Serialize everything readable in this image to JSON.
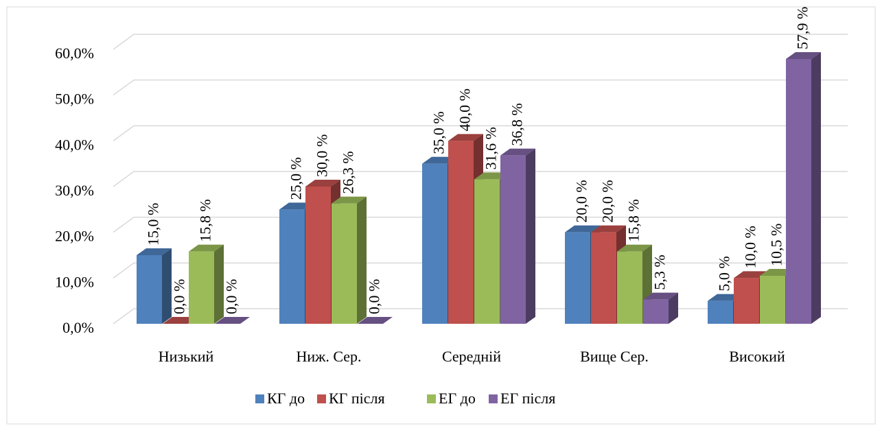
{
  "chart_data": {
    "type": "bar3d",
    "categories": [
      "Низький",
      "Ниж. Сер.",
      "Середній",
      "Вище Сер.",
      "Високий"
    ],
    "series": [
      {
        "name": "КГ до",
        "color": "#4f81bd",
        "values": [
          15.0,
          25.0,
          35.0,
          20.0,
          5.0
        ],
        "value_labels": [
          "15,0 %",
          "25,0 %",
          "35,0 %",
          "20,0 %",
          "5,0 %"
        ]
      },
      {
        "name": "КГ після",
        "color": "#c0504d",
        "values": [
          0.0,
          30.0,
          40.0,
          20.0,
          10.0
        ],
        "value_labels": [
          "0,0 %",
          "30,0 %",
          "40,0 %",
          "20,0 %",
          "10,0 %"
        ]
      },
      {
        "name": "ЕГ до",
        "color": "#9bbb59",
        "values": [
          15.8,
          26.3,
          31.6,
          15.8,
          10.5
        ],
        "value_labels": [
          "15,8 %",
          "26,3 %",
          "31,6 %",
          "15,8 %",
          "10,5 %"
        ]
      },
      {
        "name": "ЕГ після",
        "color": "#8064a2",
        "values": [
          0.0,
          0.0,
          36.8,
          5.3,
          57.9
        ],
        "value_labels": [
          "0,0 %",
          "0,0 %",
          "36,8 %",
          "5,3 %",
          "57,9 %"
        ]
      }
    ],
    "ylim": [
      0,
      60
    ],
    "yticks": [
      {
        "value": 0,
        "label": "0,0%"
      },
      {
        "value": 10,
        "label": "10,0%"
      },
      {
        "value": 20,
        "label": "20,0%"
      },
      {
        "value": 30,
        "label": "30,0%"
      },
      {
        "value": 40,
        "label": "40,0%"
      },
      {
        "value": 50,
        "label": "50,0%"
      },
      {
        "value": 60,
        "label": "60,0%"
      }
    ],
    "grid": true,
    "legend": "bottom"
  }
}
